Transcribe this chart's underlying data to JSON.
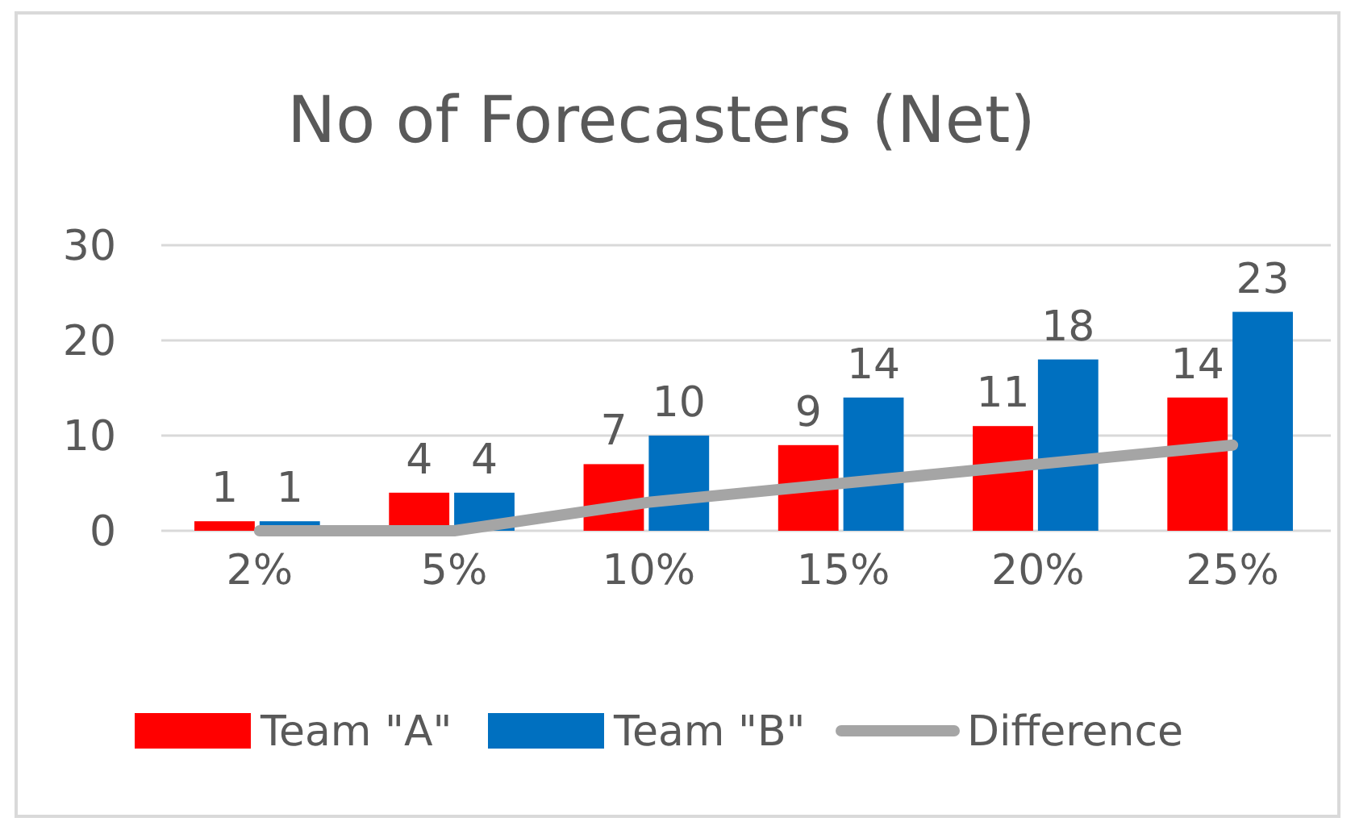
{
  "chart_data": {
    "type": "bar",
    "title": "No of Forecasters (Net)",
    "categories": [
      "2%",
      "5%",
      "10%",
      "15%",
      "20%",
      "25%"
    ],
    "series": [
      {
        "name": "Team \"A\"",
        "color": "#ff0000",
        "values": [
          1,
          4,
          7,
          9,
          11,
          14
        ],
        "value_labels": [
          "1",
          "4",
          "7",
          "9",
          "11",
          "14"
        ]
      },
      {
        "name": "Team \"B\"",
        "color": "#0070c0",
        "values": [
          1,
          4,
          10,
          14,
          18,
          23
        ],
        "value_labels": [
          "1",
          "4",
          "10",
          "14",
          "18",
          "23"
        ]
      },
      {
        "name": "Difference",
        "type": "line",
        "color": "#a5a5a5",
        "values": [
          0,
          0,
          3,
          5,
          7,
          9
        ]
      }
    ],
    "ylim": [
      0,
      30
    ],
    "yticks": [
      0,
      10,
      20,
      30
    ],
    "grid": "y",
    "legend": "bottom"
  }
}
